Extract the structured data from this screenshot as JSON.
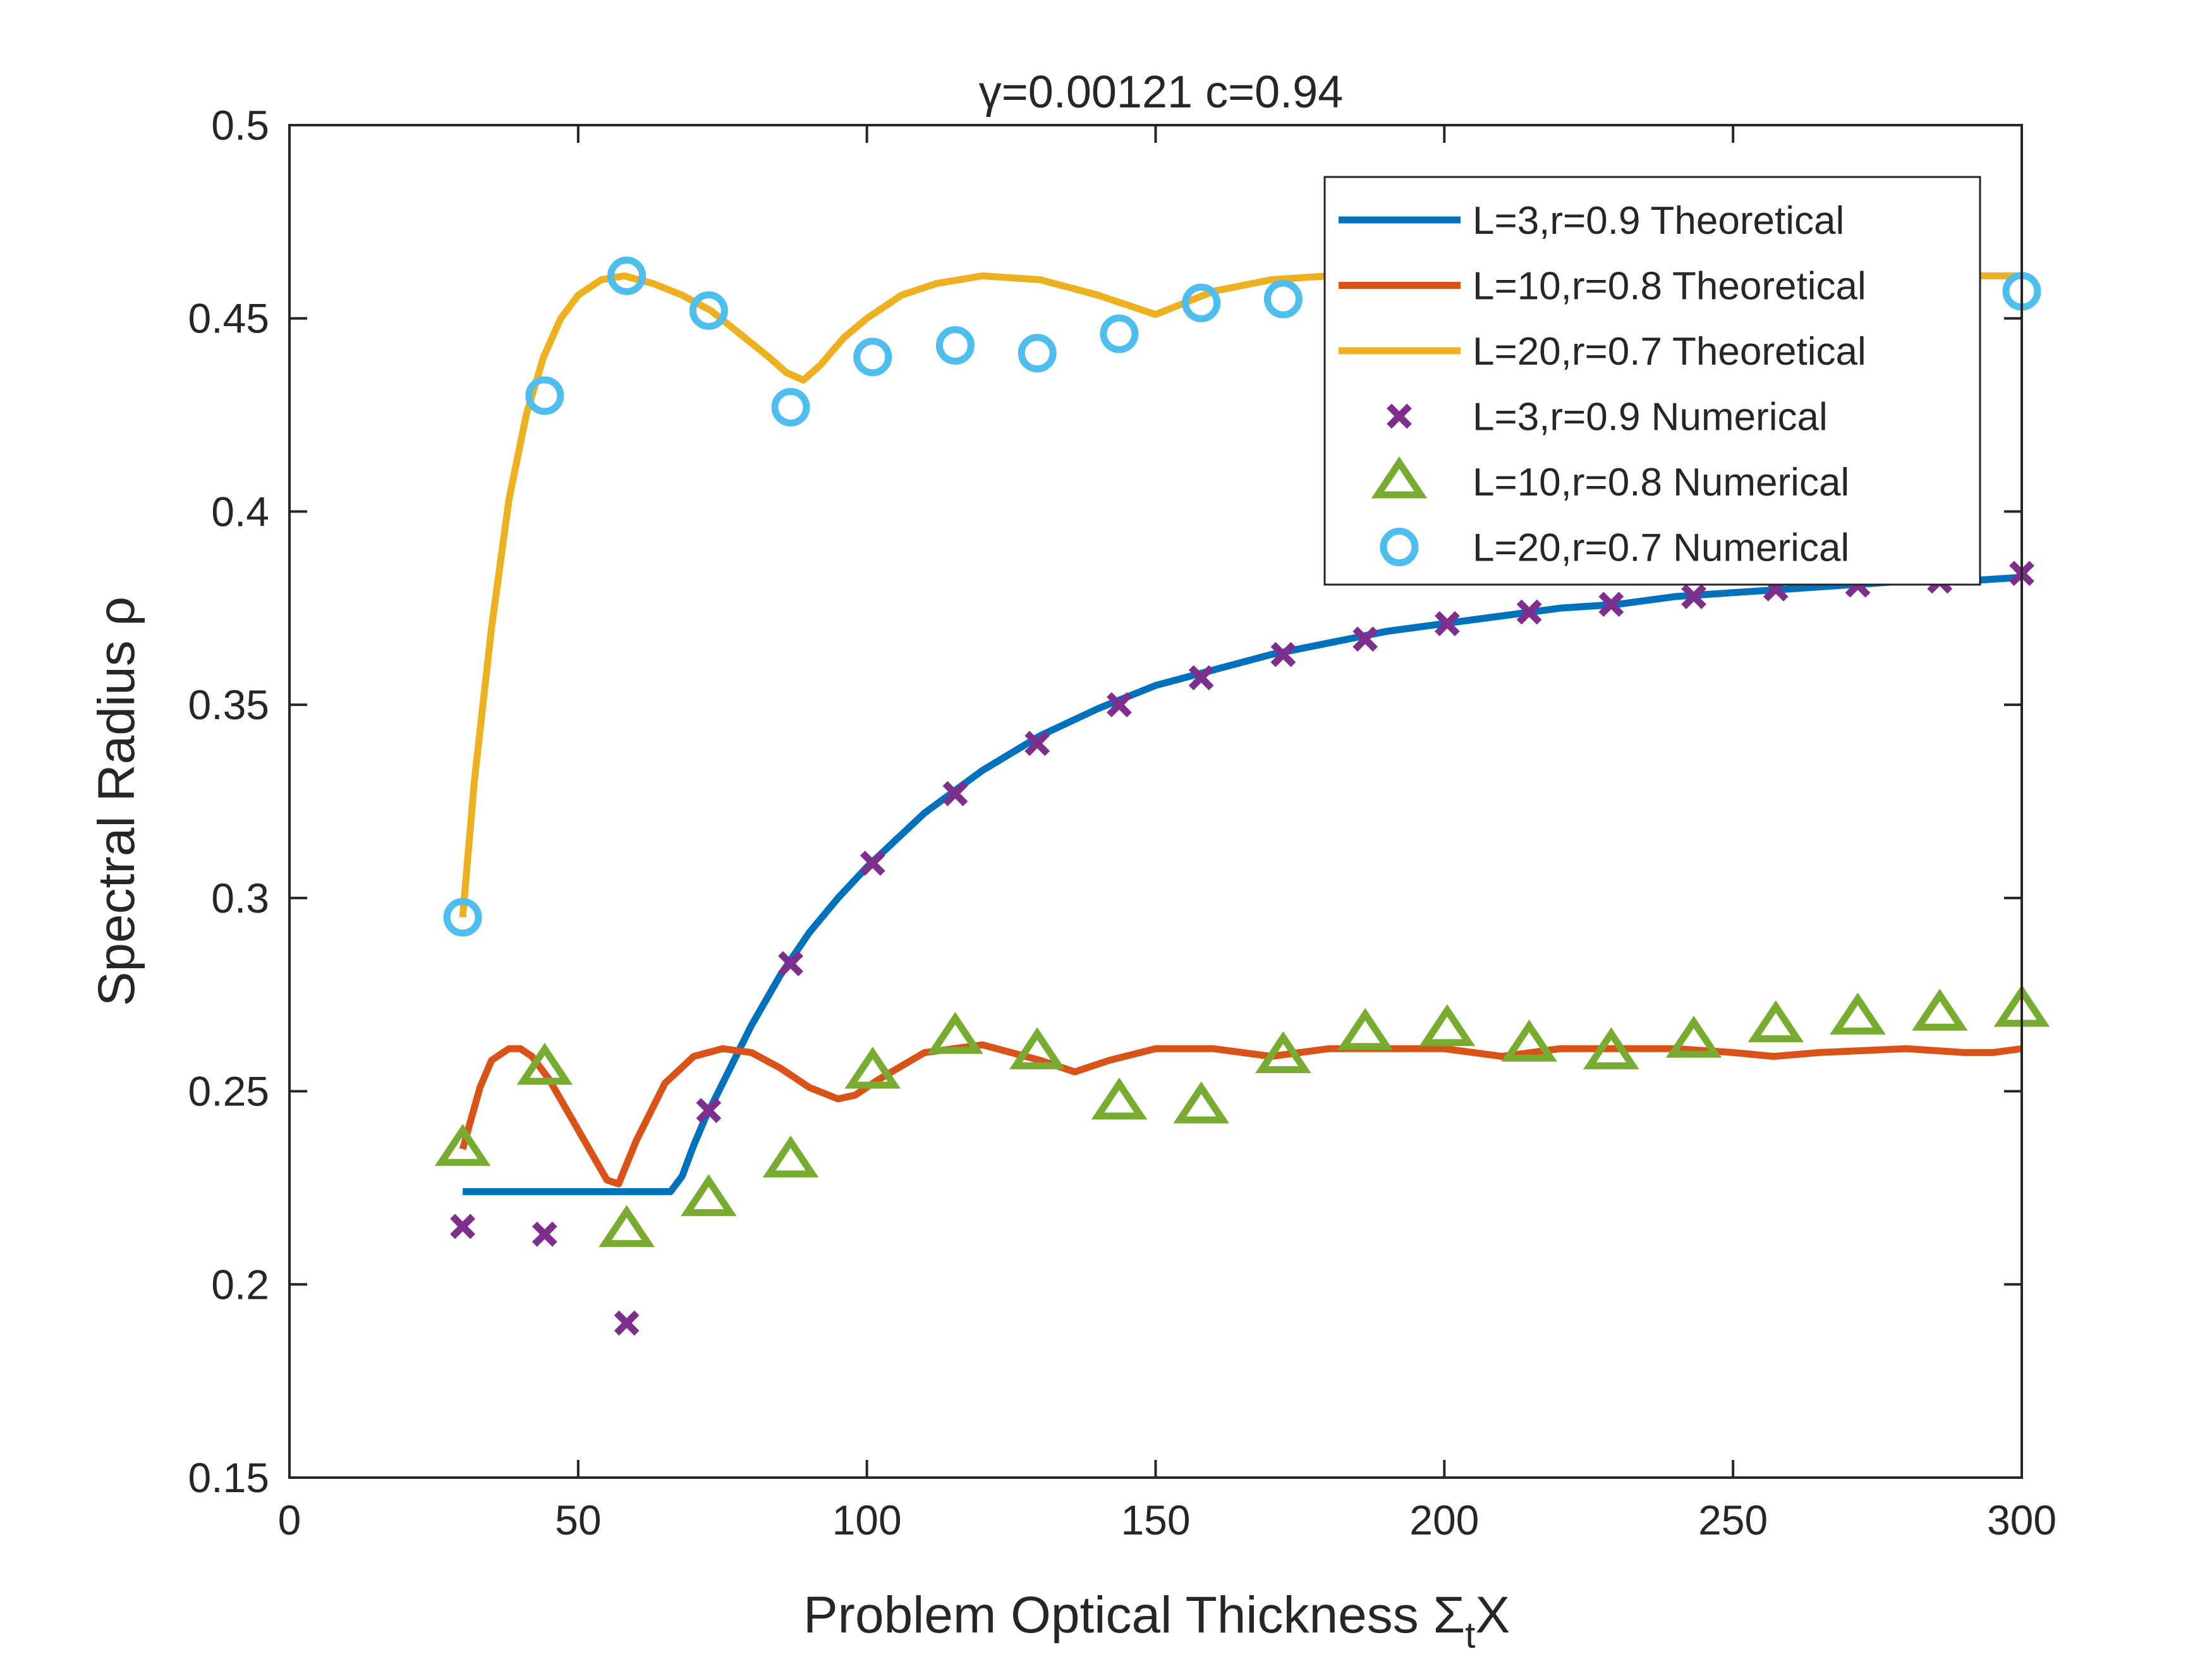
{
  "chart_data": {
    "type": "line",
    "title": "γ=0.00121 c=0.94",
    "xlabel": "Problem Optical Thickness Σ",
    "xlabel_subscript": "t",
    "xlabel_suffix": "X",
    "ylabel": "Spectral Radius ρ",
    "xlim": [
      0,
      300
    ],
    "ylim": [
      0.15,
      0.5
    ],
    "x_ticks": [
      0,
      50,
      100,
      150,
      200,
      250,
      300
    ],
    "x_tick_labels": [
      "0",
      "50",
      "100",
      "150",
      "200",
      "250",
      "300"
    ],
    "y_ticks": [
      0.15,
      0.2,
      0.25,
      0.3,
      0.35,
      0.4,
      0.45,
      0.5
    ],
    "y_tick_labels": [
      "0.15",
      "0.2",
      "0.25",
      "0.3",
      "0.35",
      "0.4",
      "0.45",
      "0.5"
    ],
    "grid": false,
    "legend_position": "top-right",
    "series": [
      {
        "name": "L=3,r=0.9 Theoretical",
        "style": "line",
        "color": "#0072BD",
        "x": [
          30,
          40,
          50,
          60,
          66,
          68,
          70,
          72,
          75,
          80,
          85,
          90,
          95,
          100,
          110,
          120,
          130,
          140,
          150,
          160,
          170,
          180,
          190,
          200,
          210,
          220,
          230,
          240,
          250,
          260,
          270,
          280,
          290,
          300
        ],
        "y": [
          0.224,
          0.224,
          0.224,
          0.224,
          0.224,
          0.228,
          0.236,
          0.243,
          0.252,
          0.267,
          0.28,
          0.291,
          0.3,
          0.308,
          0.322,
          0.333,
          0.342,
          0.349,
          0.355,
          0.359,
          0.363,
          0.366,
          0.369,
          0.371,
          0.373,
          0.375,
          0.376,
          0.378,
          0.379,
          0.38,
          0.381,
          0.382,
          0.382,
          0.383
        ]
      },
      {
        "name": "L=10,r=0.8 Theoretical",
        "style": "line",
        "color": "#D95319",
        "x": [
          30,
          33,
          35,
          38,
          40,
          42,
          45,
          50,
          55,
          57,
          60,
          65,
          70,
          75,
          80,
          85,
          90,
          95,
          98,
          102,
          110,
          120,
          130,
          136,
          142,
          150,
          160,
          170,
          180,
          190,
          200,
          210,
          220,
          230,
          240,
          250,
          257,
          265,
          280,
          290,
          295,
          300
        ],
        "y": [
          0.235,
          0.251,
          0.258,
          0.261,
          0.261,
          0.259,
          0.253,
          0.24,
          0.227,
          0.226,
          0.237,
          0.252,
          0.259,
          0.261,
          0.26,
          0.256,
          0.251,
          0.248,
          0.249,
          0.253,
          0.26,
          0.262,
          0.258,
          0.255,
          0.258,
          0.261,
          0.261,
          0.259,
          0.261,
          0.261,
          0.261,
          0.259,
          0.261,
          0.261,
          0.261,
          0.26,
          0.259,
          0.26,
          0.261,
          0.26,
          0.26,
          0.261
        ]
      },
      {
        "name": "L=20,r=0.7 Theoretical",
        "style": "line",
        "color": "#EDB120",
        "x": [
          30,
          32,
          35,
          38,
          41,
          44,
          47,
          50,
          54,
          58,
          63,
          68,
          73,
          78,
          83,
          86,
          89,
          92,
          96,
          100,
          106,
          112,
          120,
          130,
          140,
          150,
          155,
          160,
          170,
          180,
          190,
          200,
          220,
          240,
          260,
          280,
          300
        ],
        "y": [
          0.295,
          0.33,
          0.37,
          0.403,
          0.425,
          0.44,
          0.45,
          0.456,
          0.46,
          0.461,
          0.459,
          0.456,
          0.452,
          0.446,
          0.44,
          0.436,
          0.434,
          0.438,
          0.445,
          0.45,
          0.456,
          0.459,
          0.461,
          0.46,
          0.456,
          0.451,
          0.454,
          0.457,
          0.46,
          0.461,
          0.461,
          0.461,
          0.461,
          0.461,
          0.461,
          0.461,
          0.461
        ]
      },
      {
        "name": "L=3,r=0.9 Numerical",
        "style": "marker-x",
        "color": "#7E2F8E",
        "x": [
          30,
          44.2,
          58.4,
          72.6,
          86.8,
          101,
          115.3,
          129.5,
          143.7,
          157.9,
          172.1,
          186.3,
          200.5,
          214.7,
          228.9,
          243.2,
          257.4,
          271.6,
          285.8,
          300
        ],
        "y": [
          0.215,
          0.213,
          0.19,
          0.245,
          0.283,
          0.309,
          0.327,
          0.34,
          0.35,
          0.357,
          0.363,
          0.367,
          0.371,
          0.374,
          0.376,
          0.378,
          0.38,
          0.381,
          0.382,
          0.384
        ]
      },
      {
        "name": "L=10,r=0.8 Numerical",
        "style": "marker-triangle",
        "color": "#77AC30",
        "x": [
          30,
          44.2,
          58.4,
          72.6,
          86.8,
          101,
          115.3,
          129.5,
          143.7,
          157.9,
          172.1,
          186.3,
          200.5,
          214.7,
          228.9,
          243.2,
          257.4,
          271.6,
          285.8,
          300
        ],
        "y": [
          0.235,
          0.256,
          0.214,
          0.222,
          0.232,
          0.255,
          0.264,
          0.26,
          0.247,
          0.246,
          0.259,
          0.265,
          0.266,
          0.262,
          0.26,
          0.263,
          0.267,
          0.269,
          0.27,
          0.271
        ]
      },
      {
        "name": "L=20,r=0.7 Numerical",
        "style": "marker-circle",
        "color": "#4DBEEE",
        "x": [
          30,
          44.2,
          58.4,
          72.6,
          86.8,
          101,
          115.3,
          129.5,
          143.7,
          157.9,
          172.1,
          186.3,
          200.5,
          214.7,
          228.9,
          243.2,
          257.4,
          271.6,
          285.8,
          300
        ],
        "y": [
          0.295,
          0.43,
          0.461,
          0.452,
          0.427,
          0.44,
          0.443,
          0.441,
          0.446,
          0.454,
          0.455,
          0.457,
          0.458,
          0.458,
          0.458,
          0.458,
          0.458,
          0.458,
          0.458,
          0.457
        ]
      }
    ]
  }
}
